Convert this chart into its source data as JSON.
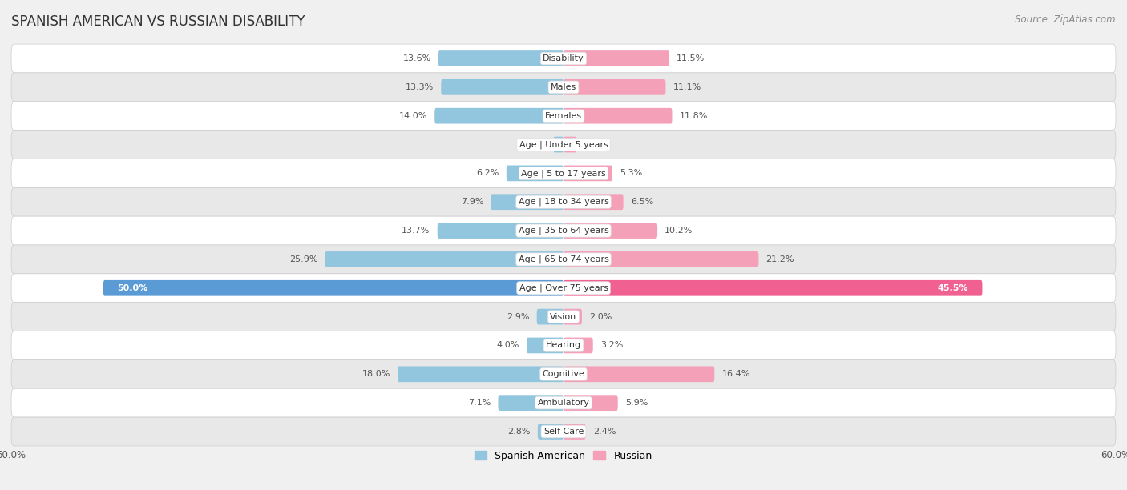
{
  "title": "SPANISH AMERICAN VS RUSSIAN DISABILITY",
  "source": "Source: ZipAtlas.com",
  "categories": [
    "Disability",
    "Males",
    "Females",
    "Age | Under 5 years",
    "Age | 5 to 17 years",
    "Age | 18 to 34 years",
    "Age | 35 to 64 years",
    "Age | 65 to 74 years",
    "Age | Over 75 years",
    "Vision",
    "Hearing",
    "Cognitive",
    "Ambulatory",
    "Self-Care"
  ],
  "spanish_american": [
    13.6,
    13.3,
    14.0,
    1.1,
    6.2,
    7.9,
    13.7,
    25.9,
    50.0,
    2.9,
    4.0,
    18.0,
    7.1,
    2.8
  ],
  "russian": [
    11.5,
    11.1,
    11.8,
    1.4,
    5.3,
    6.5,
    10.2,
    21.2,
    45.5,
    2.0,
    3.2,
    16.4,
    5.9,
    2.4
  ],
  "spanish_american_color": "#92c5de",
  "russian_color": "#f4a0b8",
  "spanish_american_color_highlight": "#5b9bd5",
  "russian_color_highlight": "#f06090",
  "axis_limit": 60.0,
  "background_color": "#f0f0f0",
  "row_bg_even": "#ffffff",
  "row_bg_odd": "#e8e8e8",
  "title_fontsize": 12,
  "source_fontsize": 8.5,
  "label_fontsize": 8,
  "category_fontsize": 8,
  "legend_fontsize": 9,
  "bar_height": 0.55,
  "highlight_idx": 8
}
